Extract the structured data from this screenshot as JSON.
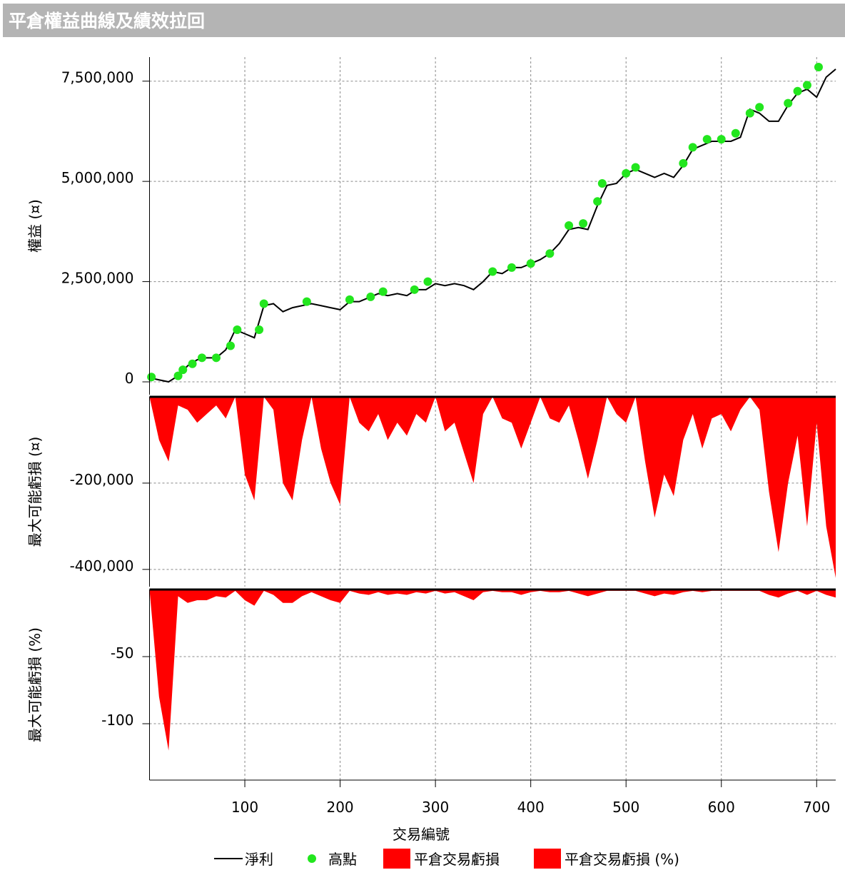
{
  "title": "平倉權益曲線及績效拉回",
  "x_label": "交易編號",
  "chart_data": [
    {
      "type": "line",
      "ylabel": "權益 (¤)",
      "ylim": [
        -320000,
        8100000
      ],
      "yticks": [
        0,
        {
          "value": 2500000,
          "label": "2,500,000"
        },
        {
          "value": 5000000,
          "label": "5,000,000"
        },
        {
          "value": 7500000,
          "label": "7,500,000"
        }
      ],
      "grid": true,
      "x": [
        0,
        10,
        20,
        30,
        40,
        50,
        60,
        70,
        80,
        90,
        100,
        110,
        120,
        130,
        140,
        150,
        160,
        170,
        180,
        190,
        200,
        210,
        220,
        230,
        240,
        250,
        260,
        270,
        280,
        290,
        300,
        310,
        320,
        330,
        340,
        350,
        360,
        370,
        380,
        390,
        400,
        410,
        420,
        430,
        440,
        450,
        460,
        470,
        480,
        490,
        500,
        510,
        520,
        530,
        540,
        550,
        560,
        570,
        580,
        590,
        600,
        610,
        620,
        630,
        640,
        650,
        660,
        670,
        680,
        690,
        700,
        710,
        720
      ],
      "series": [
        {
          "name": "淨利",
          "type": "line",
          "color": "#000000",
          "values": [
            100000,
            50000,
            0,
            150000,
            400000,
            550000,
            600000,
            600000,
            800000,
            1300000,
            1200000,
            1100000,
            1900000,
            1950000,
            1750000,
            1850000,
            1900000,
            1950000,
            1900000,
            1850000,
            1800000,
            2000000,
            2000000,
            2100000,
            2200000,
            2150000,
            2200000,
            2150000,
            2300000,
            2300000,
            2450000,
            2400000,
            2450000,
            2400000,
            2300000,
            2500000,
            2750000,
            2700000,
            2850000,
            2850000,
            2950000,
            3050000,
            3200000,
            3450000,
            3800000,
            3850000,
            3800000,
            4400000,
            4900000,
            4950000,
            5200000,
            5300000,
            5200000,
            5100000,
            5200000,
            5100000,
            5400000,
            5800000,
            5900000,
            6000000,
            6000000,
            6000000,
            6100000,
            6800000,
            6700000,
            6500000,
            6500000,
            6900000,
            7200000,
            7300000,
            7100000,
            7600000,
            7800000
          ]
        },
        {
          "name": "高點",
          "type": "scatter",
          "color": "#22e61e",
          "x": [
            2,
            30,
            35,
            45,
            55,
            70,
            85,
            92,
            115,
            120,
            165,
            210,
            232,
            245,
            278,
            292,
            360,
            380,
            400,
            420,
            440,
            455,
            470,
            475,
            500,
            510,
            560,
            570,
            585,
            600,
            615,
            630,
            640,
            670,
            680,
            690,
            702
          ],
          "values": [
            120000,
            150000,
            300000,
            450000,
            600000,
            600000,
            900000,
            1300000,
            1300000,
            1950000,
            2000000,
            2050000,
            2120000,
            2250000,
            2300000,
            2500000,
            2750000,
            2850000,
            2950000,
            3200000,
            3900000,
            3950000,
            4500000,
            4950000,
            5200000,
            5350000,
            5450000,
            5850000,
            6050000,
            6050000,
            6200000,
            6700000,
            6850000,
            6950000,
            7250000,
            7400000,
            7850000
          ]
        }
      ]
    },
    {
      "type": "area",
      "ylabel": "最大可能虧損 (¤)",
      "ylim": [
        -440000,
        0
      ],
      "yticks": [
        {
          "value": -200000,
          "label": "-200,000"
        },
        {
          "value": -400000,
          "label": "-400,000"
        }
      ],
      "grid": true,
      "x": [
        0,
        10,
        20,
        30,
        40,
        50,
        60,
        70,
        80,
        90,
        100,
        110,
        120,
        130,
        140,
        150,
        160,
        170,
        180,
        190,
        200,
        210,
        220,
        230,
        240,
        250,
        260,
        270,
        280,
        290,
        300,
        310,
        320,
        330,
        340,
        350,
        360,
        370,
        380,
        390,
        400,
        410,
        420,
        430,
        440,
        450,
        460,
        470,
        480,
        490,
        500,
        510,
        520,
        530,
        540,
        550,
        560,
        570,
        580,
        590,
        600,
        610,
        620,
        630,
        640,
        650,
        660,
        670,
        680,
        690,
        700,
        710,
        720
      ],
      "series": [
        {
          "name": "平倉交易虧損",
          "color": "#ff0000",
          "values": [
            0,
            -100000,
            -150000,
            -20000,
            -30000,
            -60000,
            -40000,
            -20000,
            -50000,
            0,
            -180000,
            -240000,
            0,
            -30000,
            -200000,
            -240000,
            -100000,
            0,
            -120000,
            -200000,
            -250000,
            0,
            -60000,
            -80000,
            -40000,
            -100000,
            -60000,
            -90000,
            -40000,
            -60000,
            0,
            -80000,
            -60000,
            -130000,
            -200000,
            -40000,
            0,
            -50000,
            -60000,
            -120000,
            -60000,
            0,
            -50000,
            -60000,
            -20000,
            -100000,
            -190000,
            -100000,
            0,
            -40000,
            -60000,
            0,
            -150000,
            -280000,
            -180000,
            -230000,
            -100000,
            -40000,
            -120000,
            -50000,
            -40000,
            -80000,
            -30000,
            0,
            -30000,
            -220000,
            -360000,
            -200000,
            -90000,
            -300000,
            -60000,
            -300000,
            -420000
          ]
        }
      ]
    },
    {
      "type": "area",
      "ylabel": "最大可能虧損 (%)",
      "ylim": [
        -142,
        0
      ],
      "yticks": [
        -50,
        -100
      ],
      "grid": true,
      "xlim": [
        0,
        720
      ],
      "xticks": [
        100,
        200,
        300,
        400,
        500,
        600,
        700
      ],
      "x": [
        0,
        10,
        20,
        30,
        40,
        50,
        60,
        70,
        80,
        90,
        100,
        110,
        120,
        130,
        140,
        150,
        160,
        170,
        180,
        190,
        200,
        210,
        220,
        230,
        240,
        250,
        260,
        270,
        280,
        290,
        300,
        310,
        320,
        330,
        340,
        350,
        360,
        370,
        380,
        390,
        400,
        410,
        420,
        430,
        440,
        450,
        460,
        470,
        480,
        490,
        500,
        510,
        520,
        530,
        540,
        550,
        560,
        570,
        580,
        590,
        600,
        610,
        620,
        630,
        640,
        650,
        660,
        670,
        680,
        690,
        700,
        710,
        720
      ],
      "series": [
        {
          "name": "平倉交易虧損 (%)",
          "color": "#ff0000",
          "values": [
            0,
            -80,
            -120,
            -5,
            -10,
            -8,
            -8,
            -5,
            -6,
            -1,
            -8,
            -12,
            -1,
            -4,
            -10,
            -10,
            -5,
            -2,
            -5,
            -8,
            -10,
            -1,
            -3,
            -4,
            -2,
            -4,
            -3,
            -4,
            -2,
            -3,
            -1,
            -3,
            -2,
            -5,
            -8,
            -2,
            -1,
            -2,
            -2,
            -4,
            -2,
            -1,
            -2,
            -2,
            -1,
            -3,
            -5,
            -3,
            -1,
            -1,
            -1,
            -1,
            -3,
            -5,
            -3,
            -4,
            -2,
            -1,
            -2,
            -1,
            -1,
            -1,
            -1,
            -1,
            -1,
            -4,
            -6,
            -3,
            -1,
            -4,
            -1,
            -4,
            -6
          ]
        }
      ]
    }
  ]
}
